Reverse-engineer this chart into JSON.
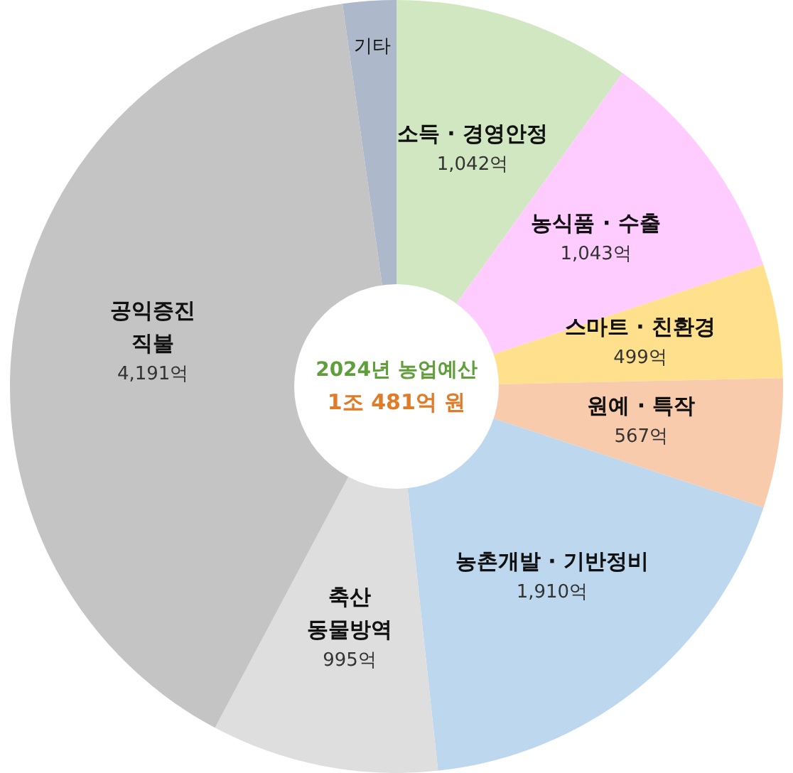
{
  "chart_data": {
    "type": "donut",
    "title": "2024년 농업예산",
    "subtitle": "1조 481억 원",
    "categories": [
      "소득 · 경영안정",
      "농식품 · 수출",
      "스마트 · 친환경",
      "원예 · 특작",
      "농촌개발 · 기반정비",
      "축산\n동물방역",
      "공익증진\n직불",
      "기타"
    ],
    "values": [
      1042,
      1043,
      499,
      567,
      1910,
      995,
      4191,
      234
    ],
    "value_labels": [
      "1,042억",
      "1,043억",
      "499억",
      "567억",
      "1,910억",
      "995억",
      "4,191억",
      null
    ],
    "colors": [
      "#d0e7c1",
      "#ffccff",
      "#ffe08c",
      "#f8cbad",
      "#bdd7ee",
      "#dedede",
      "#c4c4c4",
      "#adb9ca"
    ],
    "legend": false
  }
}
